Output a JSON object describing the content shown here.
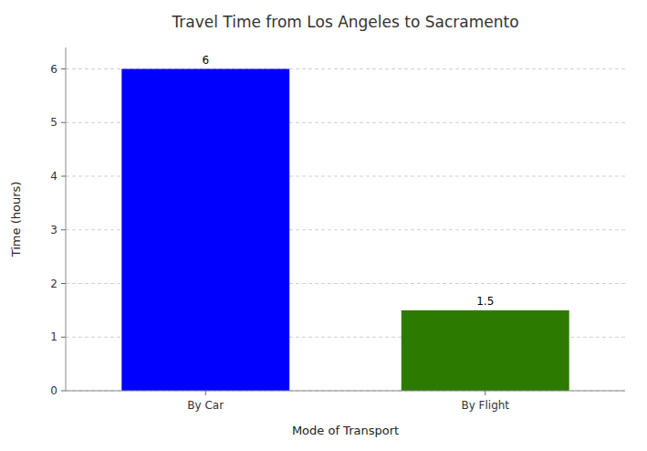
{
  "chart_data": {
    "type": "bar",
    "title": "Travel Time from Los Angeles to Sacramento",
    "x_label": "Mode of Transport",
    "y_label": "Time (hours)",
    "categories": [
      "By Car",
      "By Flight"
    ],
    "values": [
      6,
      1.5
    ],
    "colors": [
      "#0000ff",
      "#2d7a00"
    ],
    "ylim": [
      0,
      6.4
    ],
    "yticks": [
      0,
      1,
      2,
      3,
      4,
      5,
      6
    ],
    "grid": true,
    "data_labels": true
  }
}
